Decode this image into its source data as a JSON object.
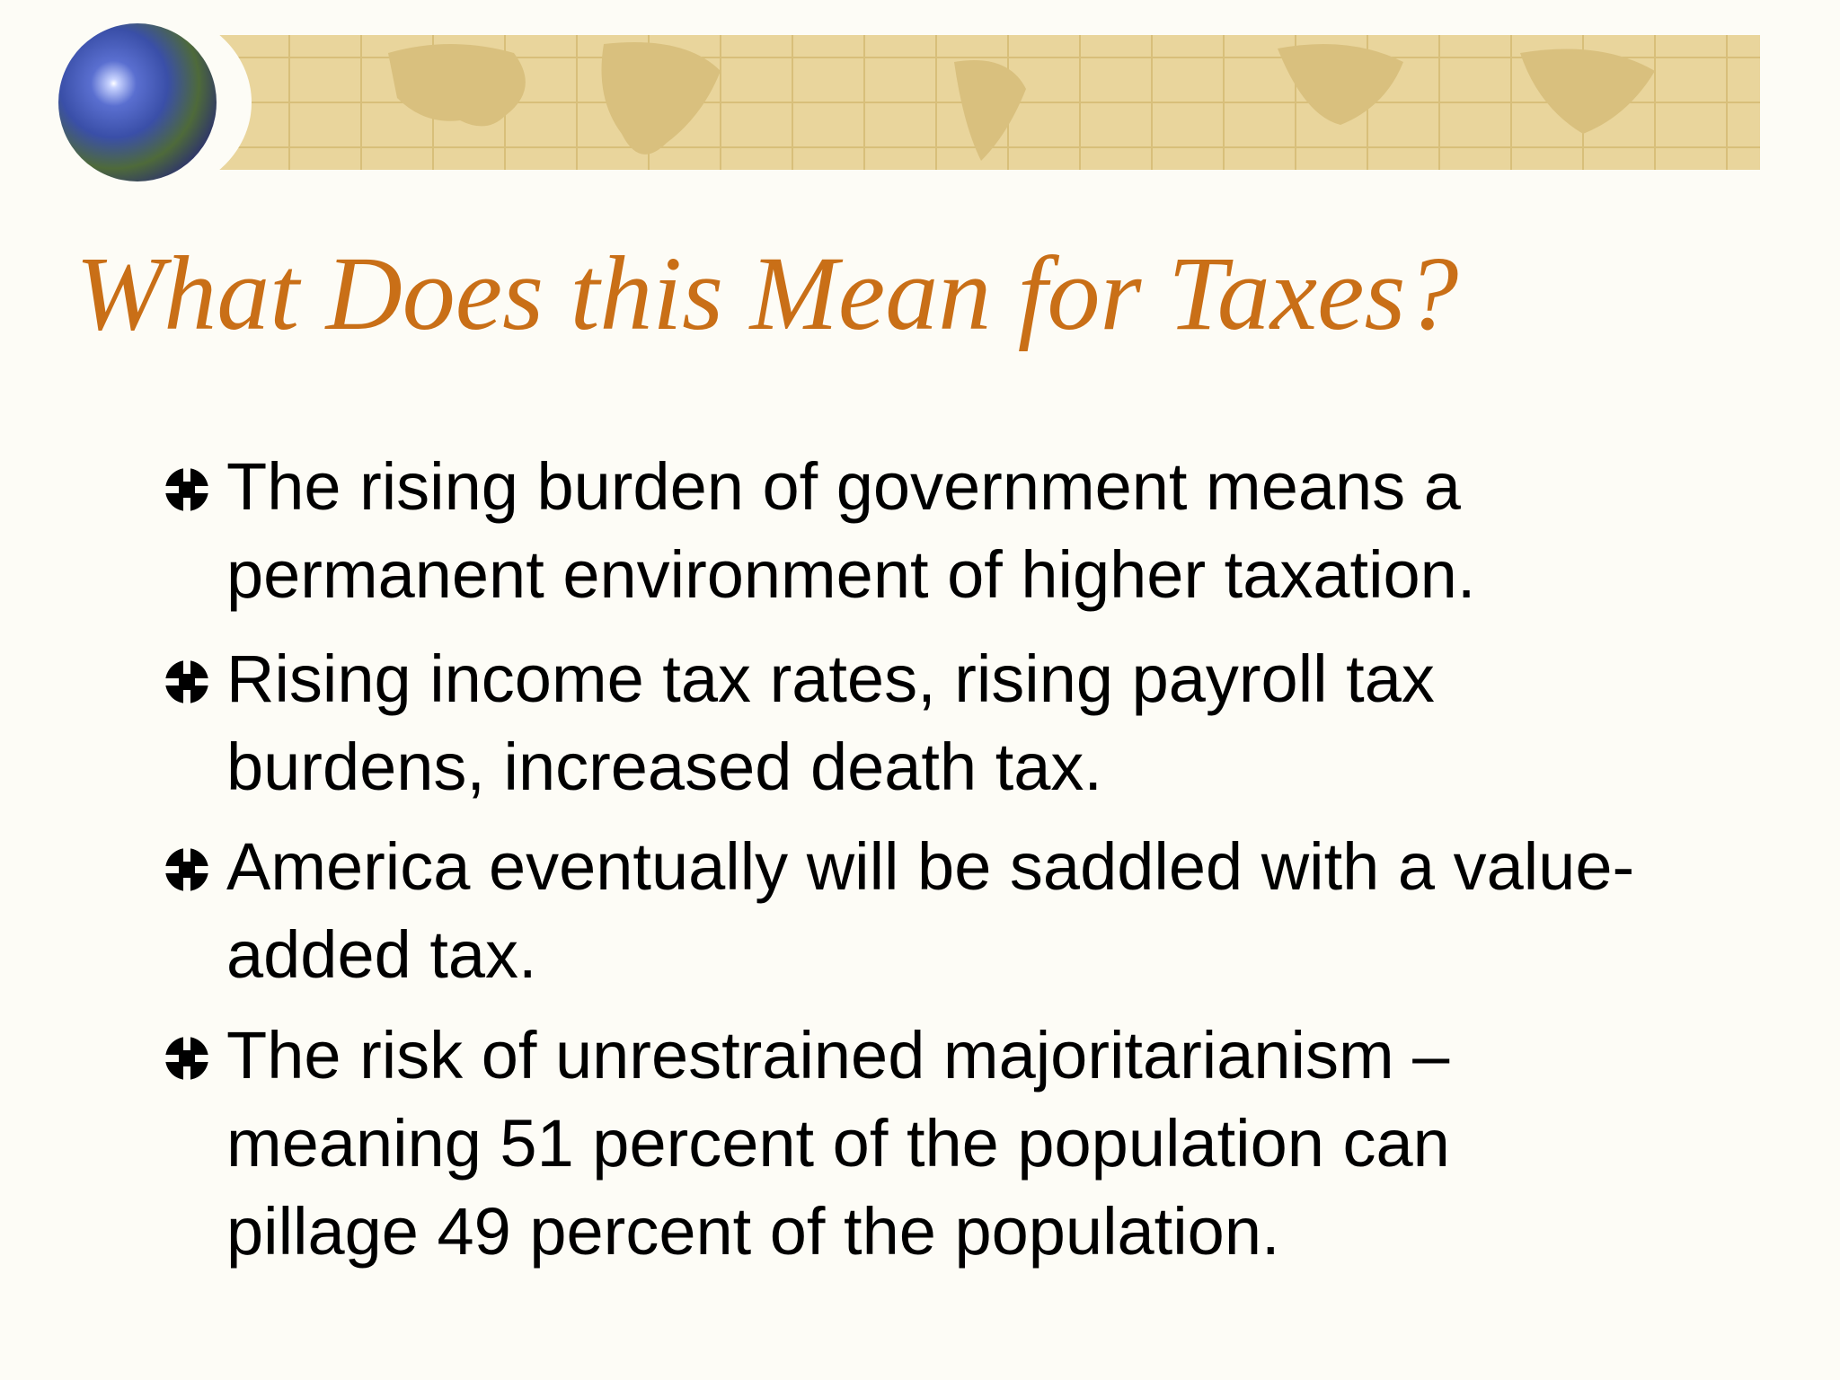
{
  "slide": {
    "title": "What Does this Mean for Taxes?",
    "bullets": [
      [
        "The rising burden of government means a",
        "permanent environment of higher taxation."
      ],
      [
        "Rising income tax rates, rising payroll tax",
        "burdens, increased death tax."
      ],
      [
        "America eventually will be saddled with a value-",
        "added tax."
      ],
      [
        "The risk of unrestrained majoritarianism –",
        "meaning 51 percent of the population can",
        "pillage 49 percent of the population."
      ]
    ]
  }
}
